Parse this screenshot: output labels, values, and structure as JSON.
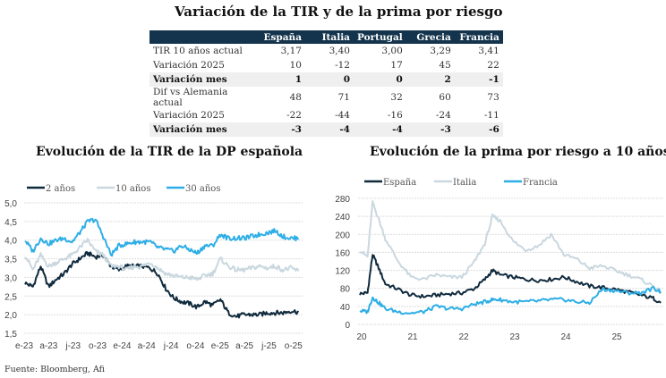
{
  "main_title": "Variación de la TIR y de la prima por riesgo",
  "table": {
    "headers": [
      "",
      "España",
      "Italia",
      "Portugal",
      "Grecia",
      "Francia"
    ],
    "rows": [
      {
        "label": "TIR 10 años actual",
        "values": [
          "3,17",
          "3,40",
          "3,00",
          "3,29",
          "3,41"
        ],
        "bold": false
      },
      {
        "label": "Variación 2025",
        "values": [
          "10",
          "-12",
          "17",
          "45",
          "22"
        ],
        "bold": false
      },
      {
        "label": "Variación mes",
        "values": [
          "1",
          "0",
          "0",
          "2",
          "-1"
        ],
        "bold": true
      },
      {
        "label": "Dif vs Alemania actual",
        "values": [
          "48",
          "71",
          "32",
          "60",
          "73"
        ],
        "bold": false
      },
      {
        "label": "Variación 2025",
        "values": [
          "-22",
          "-44",
          "-16",
          "-24",
          "-11"
        ],
        "bold": false
      },
      {
        "label": "Variación mes",
        "values": [
          "-3",
          "-4",
          "-4",
          "-3",
          "-6"
        ],
        "bold": true
      }
    ]
  },
  "source": "Fuente: Bloomberg, Afi",
  "colors": {
    "dark": "#0f2a3d",
    "light": "#c9d7df",
    "blue": "#2eaee6",
    "grid": "#dddddd"
  },
  "chart_data": [
    {
      "type": "line",
      "title": "Evolución de la TIR de la DP española",
      "xlabel": "",
      "ylabel": "",
      "x_ticks": [
        "e-23",
        "a-23",
        "j-23",
        "o-23",
        "e-24",
        "a-24",
        "j-24",
        "o-24",
        "e-25",
        "a-25",
        "j-25",
        "o-25"
      ],
      "y_ticks": [
        "1,5",
        "2,0",
        "2,5",
        "3,0",
        "3,5",
        "4,0",
        "4,5",
        "5,0"
      ],
      "ylim": [
        1.5,
        5.0
      ],
      "grid": true,
      "legend": "top-left",
      "x_months": [
        0,
        1,
        2,
        3,
        4,
        5,
        6,
        7,
        8,
        9,
        10,
        11,
        12,
        13,
        14,
        15,
        16,
        17,
        18,
        19,
        20,
        21,
        22,
        23,
        24,
        25,
        26,
        27,
        28,
        29,
        30,
        31,
        32,
        33,
        34,
        35
      ],
      "series": [
        {
          "name": "2 años",
          "color_key": "dark",
          "values": [
            2.85,
            2.75,
            3.3,
            2.75,
            2.95,
            3.1,
            3.35,
            3.5,
            3.65,
            3.55,
            3.6,
            3.3,
            3.2,
            3.3,
            3.3,
            3.3,
            3.25,
            3.1,
            2.7,
            2.45,
            2.35,
            2.3,
            2.2,
            2.35,
            2.25,
            2.4,
            2.05,
            1.95,
            2.0,
            2.0,
            2.0,
            2.05,
            2.05,
            2.05,
            2.1,
            2.07
          ]
        },
        {
          "name": "10 años",
          "color_key": "light",
          "values": [
            3.6,
            3.2,
            3.6,
            3.3,
            3.4,
            3.5,
            3.6,
            3.8,
            4.0,
            3.7,
            3.6,
            3.3,
            3.3,
            3.2,
            3.3,
            3.3,
            3.4,
            3.25,
            3.1,
            3.05,
            3.0,
            3.0,
            2.95,
            3.05,
            3.1,
            3.5,
            3.3,
            3.2,
            3.2,
            3.25,
            3.3,
            3.25,
            3.3,
            3.2,
            3.25,
            3.17
          ]
        },
        {
          "name": "30 años",
          "color_key": "blue",
          "values": [
            4.0,
            3.7,
            4.05,
            3.9,
            4.0,
            4.05,
            3.95,
            4.2,
            4.5,
            4.55,
            4.1,
            3.6,
            3.85,
            3.9,
            3.95,
            3.95,
            3.95,
            3.8,
            3.75,
            3.7,
            3.85,
            3.75,
            3.65,
            3.85,
            3.85,
            4.15,
            4.05,
            4.05,
            4.05,
            4.1,
            4.15,
            4.2,
            4.25,
            4.1,
            4.05,
            4.05
          ]
        }
      ]
    },
    {
      "type": "line",
      "title": "Evolución de la prima por riesgo a 10 años",
      "xlabel": "",
      "ylabel": "",
      "x_ticks": [
        "20",
        "21",
        "22",
        "23",
        "24",
        "25"
      ],
      "y_ticks": [
        "0",
        "40",
        "80",
        "120",
        "160",
        "200",
        "240",
        "280"
      ],
      "ylim": [
        0,
        280
      ],
      "xlim": [
        2020,
        2025.9
      ],
      "grid": true,
      "legend": "top-left",
      "x_years": [
        2020.0,
        2020.15,
        2020.25,
        2020.35,
        2020.5,
        2020.75,
        2021.0,
        2021.25,
        2021.5,
        2021.75,
        2022.0,
        2022.25,
        2022.45,
        2022.6,
        2022.75,
        2023.0,
        2023.25,
        2023.5,
        2023.75,
        2024.0,
        2024.25,
        2024.5,
        2024.75,
        2025.0,
        2025.25,
        2025.5,
        2025.75,
        2025.9
      ],
      "series": [
        {
          "name": "España",
          "color_key": "dark",
          "values": [
            68,
            70,
            155,
            130,
            90,
            78,
            65,
            62,
            65,
            68,
            70,
            80,
            100,
            120,
            110,
            105,
            100,
            98,
            100,
            105,
            95,
            85,
            82,
            78,
            72,
            65,
            58,
            48
          ]
        },
        {
          "name": "Italia",
          "color_key": "light",
          "values": [
            165,
            150,
            270,
            240,
            190,
            140,
            105,
            100,
            110,
            105,
            105,
            140,
            180,
            240,
            230,
            185,
            165,
            175,
            200,
            155,
            145,
            125,
            130,
            120,
            110,
            100,
            85,
            71
          ]
        },
        {
          "name": "Francia",
          "color_key": "blue",
          "values": [
            30,
            28,
            60,
            50,
            35,
            28,
            25,
            28,
            40,
            35,
            35,
            45,
            50,
            55,
            55,
            50,
            50,
            52,
            55,
            55,
            50,
            48,
            78,
            75,
            70,
            70,
            80,
            73
          ]
        }
      ]
    }
  ]
}
